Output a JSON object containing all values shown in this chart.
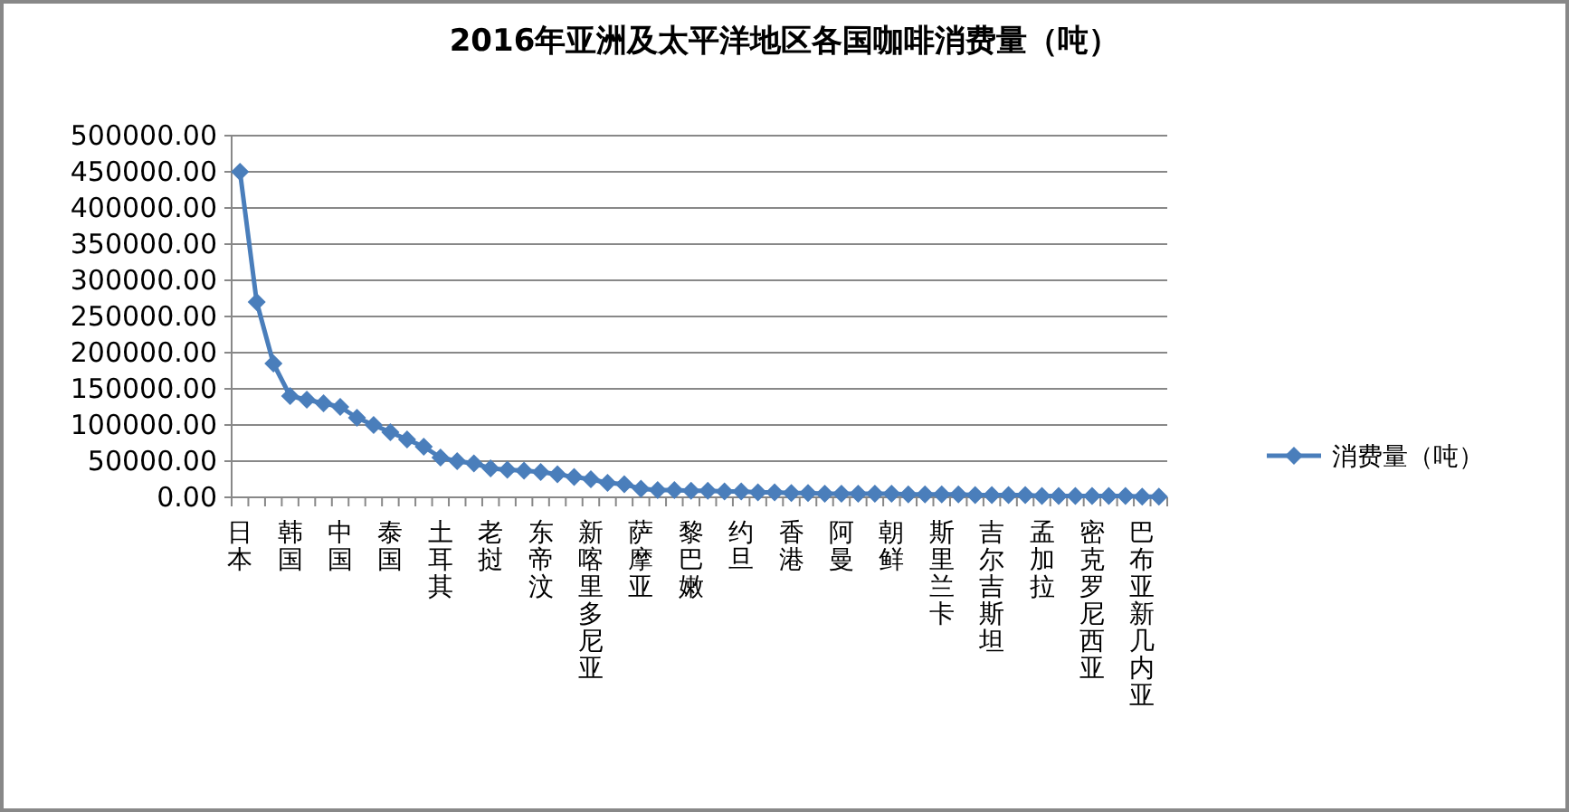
{
  "chart_data": {
    "type": "line",
    "title": "2016年亚洲及太平洋地区各国咖啡消费量（吨）",
    "categories": [
      "日本",
      null,
      null,
      "韩国",
      null,
      null,
      "中国",
      null,
      null,
      "泰国",
      null,
      null,
      "土耳其",
      null,
      null,
      "老挝",
      null,
      null,
      "东帝汶",
      null,
      null,
      "新喀里多尼亚",
      null,
      null,
      "萨摩亚",
      null,
      null,
      "黎巴嫩",
      null,
      null,
      "约旦",
      null,
      null,
      "香港",
      null,
      null,
      "阿曼",
      null,
      null,
      "朝鲜",
      null,
      null,
      "斯里兰卡",
      null,
      null,
      "吉尔吉斯坦",
      null,
      null,
      "孟加拉",
      null,
      null,
      "密克罗尼西亚",
      null,
      null,
      "巴布亚新几内亚",
      null
    ],
    "series": [
      {
        "name": "消费量（吨）",
        "color": "#4a7ebb",
        "values": [
          450000,
          270000,
          185000,
          140000,
          135000,
          130000,
          125000,
          110000,
          100000,
          90000,
          80000,
          70000,
          55000,
          50000,
          47000,
          40000,
          38000,
          37000,
          35000,
          32000,
          28000,
          25000,
          20000,
          18000,
          12000,
          10000,
          10000,
          9000,
          9000,
          8000,
          8000,
          7000,
          7000,
          6000,
          6000,
          5000,
          5000,
          5000,
          5000,
          5000,
          4000,
          4000,
          4000,
          4000,
          3000,
          3000,
          3000,
          3000,
          2000,
          2000,
          2000,
          2000,
          2000,
          2000,
          1000,
          1000
        ]
      }
    ],
    "ylim": [
      0,
      500000
    ],
    "yticks": [
      {
        "value": 0,
        "label": "0.00"
      },
      {
        "value": 50000,
        "label": "50000.00"
      },
      {
        "value": 100000,
        "label": "100000.00"
      },
      {
        "value": 150000,
        "label": "150000.00"
      },
      {
        "value": 200000,
        "label": "200000.00"
      },
      {
        "value": 250000,
        "label": "250000.00"
      },
      {
        "value": 300000,
        "label": "300000.00"
      },
      {
        "value": 350000,
        "label": "350000.00"
      },
      {
        "value": 400000,
        "label": "400000.00"
      },
      {
        "value": 450000,
        "label": "450000.00"
      },
      {
        "value": 500000,
        "label": "500000.00"
      }
    ],
    "grid": "y",
    "legend": "right",
    "marker": "diamond",
    "line_style": "solid"
  }
}
